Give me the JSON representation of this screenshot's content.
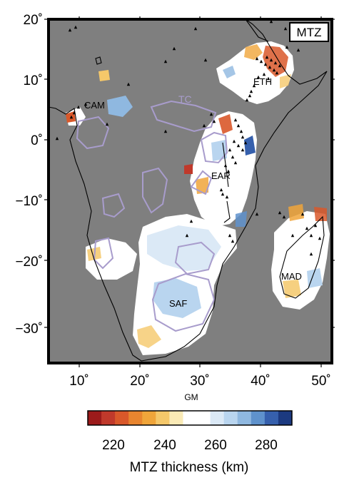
{
  "panel": {
    "badge": "MTZ"
  },
  "map": {
    "lon_range": [
      5,
      52
    ],
    "lat_range": [
      -35,
      20
    ],
    "lon_ticks": [
      "10˚",
      "20˚",
      "30˚",
      "40˚",
      "50˚"
    ],
    "lat_ticks": [
      "20˚",
      "10˚",
      "0˚",
      "−10˚",
      "−20˚",
      "−30˚"
    ],
    "background_color": "#7f7f7f",
    "coastline_color": "#000000",
    "province_outline_color": "#a89ccc"
  },
  "regions": {
    "cam": "CAM",
    "tc": "TC",
    "eth": "ETH",
    "ear": "EAR",
    "saf": "SAF",
    "mad": "MAD"
  },
  "scale_label": "GM",
  "colorbar": {
    "ticks": [
      "220",
      "240",
      "260",
      "280"
    ],
    "title": "MTZ thickness (km)",
    "min": 210,
    "max": 290,
    "colors": [
      "#9c1b1b",
      "#c0392b",
      "#d9582a",
      "#e8852f",
      "#f0a53a",
      "#f5c86a",
      "#faeab6",
      "#ffffff",
      "#ffffff",
      "#dbe9f6",
      "#b9d5ef",
      "#8fb8e0",
      "#5f92cc",
      "#3660ad",
      "#1c3a80"
    ]
  }
}
